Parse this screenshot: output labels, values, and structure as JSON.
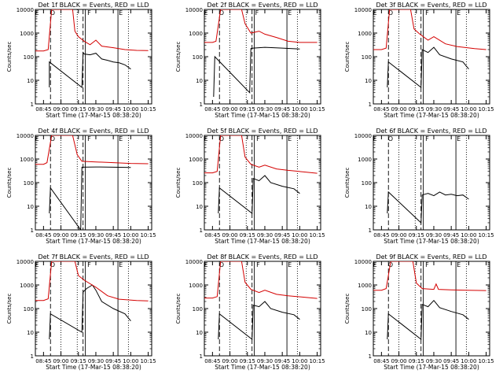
{
  "chart_data": [
    {
      "type": "line",
      "title": "Det 1f BLACK = Events, RED = LLD",
      "ylabel": "Counts/sec",
      "xlabel": "Start Time (17-Mar-15 08:38:20)",
      "y_scale": "log",
      "ylim": [
        1,
        10000
      ],
      "x_ticks": [
        "08:45",
        "09:00",
        "09:15",
        "09:30",
        "09:45",
        "10:00",
        "10:15"
      ],
      "markers": [
        {
          "label": "E",
          "t": "08:37"
        },
        {
          "label": "O",
          "t": "08:50"
        },
        {
          "label": "F",
          "t": "09:22"
        },
        {
          "label": "E",
          "t": "09:49"
        }
      ],
      "series": [
        {
          "color": "#000000",
          "x": [
            "08:50",
            "08:50",
            "09:18",
            "09:19",
            "09:20",
            "09:25",
            "09:30",
            "09:35",
            "09:40",
            "09:45",
            "09:50",
            "09:55",
            "10:00"
          ],
          "y": [
            5,
            60,
            5,
            150,
            130,
            120,
            140,
            80,
            70,
            60,
            55,
            45,
            30
          ]
        },
        {
          "color": "#d40000",
          "x": [
            "08:38",
            "08:45",
            "08:49",
            "08:52",
            "09:10",
            "09:12",
            "09:15",
            "09:20",
            "09:25",
            "09:30",
            "09:35",
            "09:45",
            "09:55",
            "10:05",
            "10:15"
          ],
          "y": [
            175,
            175,
            200,
            10000,
            10000,
            1200,
            700,
            450,
            320,
            500,
            280,
            240,
            200,
            185,
            180
          ]
        }
      ]
    },
    {
      "type": "line",
      "title": "Det 2f BLACK = Events, RED = LLD",
      "ylabel": "Counts/sec",
      "xlabel": "Start Time (17-Mar-15 08:38:20)",
      "y_scale": "log",
      "ylim": [
        1,
        10000
      ],
      "x_ticks": [
        "08:45",
        "09:00",
        "09:15",
        "09:30",
        "09:45",
        "10:00",
        "10:15"
      ],
      "markers": [
        {
          "label": "E",
          "t": "08:37"
        },
        {
          "label": "O",
          "t": "08:50"
        },
        {
          "label": "F",
          "t": "09:21"
        },
        {
          "label": "E",
          "t": "09:49"
        }
      ],
      "series": [
        {
          "color": "#000000",
          "x": [
            "08:46",
            "08:47",
            "09:17",
            "09:18",
            "09:20",
            "09:30",
            "09:45",
            "10:00"
          ],
          "y": [
            2,
            100,
            3,
            220,
            230,
            250,
            230,
            210
          ]
        },
        {
          "color": "#d40000",
          "x": [
            "08:38",
            "08:45",
            "08:48",
            "08:52",
            "09:10",
            "09:13",
            "09:18",
            "09:25",
            "09:30",
            "09:40",
            "09:50",
            "10:00",
            "10:15"
          ],
          "y": [
            400,
            400,
            450,
            10000,
            10000,
            2500,
            1000,
            1200,
            900,
            650,
            450,
            400,
            400
          ]
        }
      ]
    },
    {
      "type": "line",
      "title": "Det 3f BLACK = Events, RED = LLD",
      "ylabel": "Counts/sec",
      "xlabel": "Start Time (17-Mar-15 08:38:20)",
      "y_scale": "log",
      "ylim": [
        1,
        10000
      ],
      "x_ticks": [
        "08:45",
        "09:00",
        "09:15",
        "09:30",
        "09:45",
        "10:00",
        "10:15"
      ],
      "markers": [
        {
          "label": "E",
          "t": "08:37"
        },
        {
          "label": "O",
          "t": "08:50"
        },
        {
          "label": "F",
          "t": "09:22"
        },
        {
          "label": "E",
          "t": "09:49"
        }
      ],
      "series": [
        {
          "color": "#000000",
          "x": [
            "08:50",
            "08:51",
            "09:19",
            "09:20",
            "09:25",
            "09:30",
            "09:35",
            "09:45",
            "09:55",
            "10:00"
          ],
          "y": [
            5,
            60,
            5,
            200,
            150,
            250,
            120,
            80,
            60,
            30
          ]
        },
        {
          "color": "#d40000",
          "x": [
            "08:38",
            "08:45",
            "08:49",
            "08:52",
            "09:10",
            "09:13",
            "09:18",
            "09:25",
            "09:30",
            "09:40",
            "09:50",
            "10:05",
            "10:15"
          ],
          "y": [
            200,
            200,
            230,
            10000,
            10000,
            1500,
            900,
            500,
            700,
            350,
            270,
            220,
            200
          ]
        }
      ]
    },
    {
      "type": "line",
      "title": "Det 4f BLACK = Events, RED = LLD",
      "ylabel": "Counts/sec",
      "xlabel": "Start Time (17-Mar-15 08:38:20)",
      "y_scale": "log",
      "ylim": [
        1,
        10000
      ],
      "x_ticks": [
        "08:45",
        "09:00",
        "09:15",
        "09:30",
        "09:45",
        "10:00",
        "10:15"
      ],
      "markers": [
        {
          "label": "E",
          "t": "08:37"
        },
        {
          "label": "O",
          "t": "08:50"
        },
        {
          "label": "F",
          "t": "09:22"
        },
        {
          "label": "E",
          "t": "09:49"
        }
      ],
      "series": [
        {
          "color": "#000000",
          "x": [
            "08:50",
            "08:51",
            "09:17",
            "09:18",
            "09:30",
            "09:45",
            "10:00"
          ],
          "y": [
            5,
            60,
            1,
            450,
            460,
            450,
            440
          ]
        },
        {
          "color": "#d40000",
          "x": [
            "08:38",
            "08:45",
            "08:48",
            "08:52",
            "09:10",
            "09:14",
            "09:18",
            "09:30",
            "09:45",
            "10:00",
            "10:15"
          ],
          "y": [
            600,
            600,
            700,
            10000,
            10000,
            1500,
            800,
            750,
            700,
            650,
            630
          ]
        }
      ]
    },
    {
      "type": "line",
      "title": "Det 5f BLACK = Events, RED = LLD",
      "ylabel": "Counts/sec",
      "xlabel": "Start Time (17-Mar-15 08:38:20)",
      "y_scale": "log",
      "ylim": [
        1,
        10000
      ],
      "x_ticks": [
        "08:45",
        "09:00",
        "09:15",
        "09:30",
        "09:45",
        "10:00",
        "10:15"
      ],
      "markers": [
        {
          "label": "E",
          "t": "08:37"
        },
        {
          "label": "O",
          "t": "08:50"
        },
        {
          "label": "F",
          "t": "09:22"
        },
        {
          "label": "E",
          "t": "09:49"
        }
      ],
      "series": [
        {
          "color": "#000000",
          "x": [
            "08:50",
            "08:51",
            "09:19",
            "09:20",
            "09:25",
            "09:30",
            "09:35",
            "09:45",
            "09:55",
            "10:00"
          ],
          "y": [
            5,
            60,
            5,
            150,
            120,
            200,
            100,
            70,
            55,
            35
          ]
        },
        {
          "color": "#d40000",
          "x": [
            "08:38",
            "08:45",
            "08:49",
            "08:52",
            "09:10",
            "09:13",
            "09:18",
            "09:25",
            "09:30",
            "09:40",
            "09:50",
            "10:05",
            "10:15"
          ],
          "y": [
            260,
            260,
            300,
            10000,
            10000,
            1200,
            600,
            450,
            550,
            380,
            330,
            280,
            250
          ]
        }
      ]
    },
    {
      "type": "line",
      "title": "Det 6f BLACK = Events, RED = LLD",
      "ylabel": "Counts/sec",
      "xlabel": "Start Time (17-Mar-15 08:38:20)",
      "y_scale": "log",
      "ylim": [
        1,
        10000
      ],
      "x_ticks": [
        "08:45",
        "09:00",
        "09:15",
        "09:30",
        "09:45",
        "10:00",
        "10:15"
      ],
      "markers": [
        {
          "label": "E",
          "t": "08:37"
        },
        {
          "label": "O",
          "t": "08:50"
        },
        {
          "label": "F",
          "t": "09:22"
        },
        {
          "label": "E",
          "t": "09:49"
        }
      ],
      "series": [
        {
          "color": "#000000",
          "x": [
            "08:50",
            "08:51",
            "09:19",
            "09:20",
            "09:25",
            "09:30",
            "09:35",
            "09:40",
            "09:45",
            "09:50",
            "09:55",
            "10:00"
          ],
          "y": [
            5,
            40,
            2,
            30,
            35,
            28,
            40,
            30,
            32,
            28,
            30,
            20
          ]
        },
        {
          "color": "#d40000",
          "x": [],
          "y": []
        }
      ]
    },
    {
      "type": "line",
      "title": "Det 7f BLACK = Events, RED = LLD",
      "ylabel": "Counts/sec",
      "xlabel": "Start Time (17-Mar-15 08:38:20)",
      "y_scale": "log",
      "ylim": [
        1,
        10000
      ],
      "x_ticks": [
        "08:45",
        "09:00",
        "09:15",
        "09:30",
        "09:45",
        "10:00",
        "10:15"
      ],
      "markers": [
        {
          "label": "E",
          "t": "08:37"
        },
        {
          "label": "O",
          "t": "08:50"
        },
        {
          "label": "F",
          "t": "09:22"
        },
        {
          "label": "E",
          "t": "09:49"
        }
      ],
      "series": [
        {
          "color": "#000000",
          "x": [
            "08:50",
            "08:51",
            "09:18",
            "09:19",
            "09:22",
            "09:27",
            "09:30",
            "09:35",
            "09:45",
            "09:55",
            "10:00"
          ],
          "y": [
            5,
            60,
            10,
            500,
            700,
            1000,
            600,
            200,
            100,
            60,
            30
          ]
        },
        {
          "color": "#d40000",
          "x": [
            "08:38",
            "08:45",
            "08:49",
            "08:52",
            "09:12",
            "09:15",
            "09:20",
            "09:30",
            "09:40",
            "09:50",
            "10:05",
            "10:15"
          ],
          "y": [
            220,
            220,
            260,
            10000,
            10000,
            2500,
            1600,
            800,
            350,
            250,
            220,
            210
          ]
        }
      ]
    },
    {
      "type": "line",
      "title": "Det 8f BLACK = Events, RED = LLD",
      "ylabel": "Counts/sec",
      "xlabel": "Start Time (17-Mar-15 08:38:20)",
      "y_scale": "log",
      "ylim": [
        1,
        10000
      ],
      "x_ticks": [
        "08:45",
        "09:00",
        "09:15",
        "09:30",
        "09:45",
        "10:00",
        "10:15"
      ],
      "markers": [
        {
          "label": "E",
          "t": "08:37"
        },
        {
          "label": "O",
          "t": "08:50"
        },
        {
          "label": "F",
          "t": "09:22"
        },
        {
          "label": "E",
          "t": "09:49"
        }
      ],
      "series": [
        {
          "color": "#000000",
          "x": [
            "08:50",
            "08:51",
            "09:19",
            "09:20",
            "09:25",
            "09:30",
            "09:35",
            "09:45",
            "09:55",
            "10:00"
          ],
          "y": [
            5,
            60,
            5,
            140,
            120,
            200,
            100,
            70,
            55,
            35
          ]
        },
        {
          "color": "#d40000",
          "x": [
            "08:38",
            "08:45",
            "08:49",
            "08:52",
            "09:10",
            "09:13",
            "09:18",
            "09:25",
            "09:30",
            "09:40",
            "09:50",
            "10:05",
            "10:15"
          ],
          "y": [
            280,
            280,
            320,
            10000,
            10000,
            1300,
            650,
            480,
            600,
            400,
            350,
            300,
            270
          ]
        }
      ]
    },
    {
      "type": "line",
      "title": "Det 9f BLACK = Events, RED = LLD",
      "ylabel": "Counts/sec",
      "xlabel": "Start Time (17-Mar-15 08:38:20)",
      "y_scale": "log",
      "ylim": [
        1,
        10000
      ],
      "x_ticks": [
        "08:45",
        "09:00",
        "09:15",
        "09:30",
        "09:45",
        "10:00",
        "10:15"
      ],
      "markers": [
        {
          "label": "E",
          "t": "08:37"
        },
        {
          "label": "O",
          "t": "08:50"
        },
        {
          "label": "F",
          "t": "09:22"
        },
        {
          "label": "E",
          "t": "09:49"
        }
      ],
      "series": [
        {
          "color": "#000000",
          "x": [
            "08:50",
            "08:51",
            "09:19",
            "09:20",
            "09:25",
            "09:30",
            "09:35",
            "09:45",
            "09:55",
            "10:00"
          ],
          "y": [
            5,
            60,
            5,
            150,
            120,
            220,
            110,
            75,
            55,
            35
          ]
        },
        {
          "color": "#d40000",
          "x": [
            "08:38",
            "08:45",
            "08:49",
            "08:53",
            "09:12",
            "09:15",
            "09:20",
            "09:30",
            "09:32",
            "09:34",
            "09:45",
            "10:00",
            "10:15"
          ],
          "y": [
            600,
            600,
            700,
            10000,
            10000,
            1200,
            700,
            650,
            1100,
            650,
            620,
            600,
            580
          ]
        }
      ]
    }
  ]
}
